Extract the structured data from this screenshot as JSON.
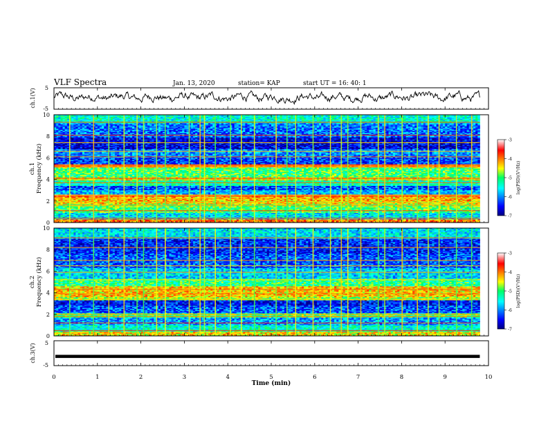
{
  "header": {
    "title": "VLF Spectra",
    "date": "Jan. 13, 2020",
    "station": "station= KAP",
    "start": "start UT = 16: 40: 1"
  },
  "chart_data": [
    {
      "type": "line",
      "name": "ch1-waveform",
      "ylabel": "ch.1(V)",
      "ylim": [
        -5,
        5
      ],
      "yticks": [
        "5",
        "-5"
      ],
      "xlim": [
        0,
        10
      ],
      "note_level_volts": 0.5,
      "series": [
        {
          "values_x_end_min": 9.8
        }
      ]
    },
    {
      "type": "heatmap",
      "name": "ch1-spectrogram",
      "ylabel": "ch.1\nFrequency (kHz)",
      "ylabel_line1": "ch.1",
      "ylabel_line2": "Frequency (kHz)",
      "ylim": [
        0,
        10
      ],
      "yticks": [
        "0",
        "2",
        "4",
        "6",
        "8",
        "10"
      ],
      "xlim": [
        0,
        9.8
      ],
      "colorbar": {
        "label": "log(PSD)(V²/Hz)",
        "range": [
          -7,
          -3
        ],
        "ticks": [
          "-3",
          "-4",
          "-5",
          "-6",
          "-7"
        ]
      },
      "bands_khz": [
        {
          "from": 0.0,
          "to": 0.3,
          "level": -4.0
        },
        {
          "from": 0.3,
          "to": 0.9,
          "level": -5.6
        },
        {
          "from": 0.9,
          "to": 1.4,
          "level": -5.0
        },
        {
          "from": 1.4,
          "to": 1.7,
          "level": -4.8
        },
        {
          "from": 1.7,
          "to": 2.0,
          "level": -4.4
        },
        {
          "from": 2.0,
          "to": 2.4,
          "level": -4.2
        },
        {
          "from": 2.4,
          "to": 2.6,
          "level": -3.6
        },
        {
          "from": 2.6,
          "to": 3.0,
          "level": -5.8
        },
        {
          "from": 3.0,
          "to": 3.4,
          "level": -6.2
        },
        {
          "from": 3.4,
          "to": 3.9,
          "level": -5.3
        },
        {
          "from": 3.9,
          "to": 4.2,
          "level": -4.5
        },
        {
          "from": 4.2,
          "to": 5.1,
          "level": -5.0
        },
        {
          "from": 5.1,
          "to": 5.4,
          "level": -3.8
        },
        {
          "from": 5.4,
          "to": 6.0,
          "level": -6.3
        },
        {
          "from": 6.0,
          "to": 6.8,
          "level": -6.0
        },
        {
          "from": 6.8,
          "to": 7.9,
          "level": -6.6
        },
        {
          "from": 7.9,
          "to": 9.2,
          "level": -6.1
        },
        {
          "from": 9.2,
          "to": 10.0,
          "level": -5.4
        }
      ],
      "lines_khz": [
        0.4,
        1.1,
        1.6,
        1.9,
        2.2,
        2.45,
        2.55,
        3.7,
        4.1,
        5.15,
        5.3,
        6.1,
        6.6,
        7.4,
        8.1,
        9.3
      ],
      "bursts_min": [
        0.35,
        0.9,
        1.25,
        1.6,
        1.9,
        2.05,
        2.35,
        2.55,
        3.1,
        3.35,
        3.45,
        3.7,
        4.05,
        4.3,
        4.6,
        5.1,
        5.35,
        5.55,
        5.95,
        6.35,
        6.6,
        6.75,
        7.05,
        7.45,
        7.6,
        8.0,
        8.35,
        8.6,
        8.85,
        9.25,
        9.6
      ]
    },
    {
      "type": "heatmap",
      "name": "ch2-spectrogram",
      "ylabel": "ch.2\nFrequency (kHz)",
      "ylabel_line1": "ch.2",
      "ylabel_line2": "Frequency (kHz)",
      "ylim": [
        0,
        10
      ],
      "yticks": [
        "0",
        "2",
        "4",
        "6",
        "8",
        "10"
      ],
      "xlim": [
        0,
        9.8
      ],
      "colorbar": {
        "label": "log(PSD)(V²/Hz)",
        "range": [
          -7,
          -3
        ],
        "ticks": [
          "-3",
          "-4",
          "-5",
          "-6",
          "-7"
        ]
      },
      "bands_khz": [
        {
          "from": 0.0,
          "to": 0.4,
          "level": -4.4
        },
        {
          "from": 0.4,
          "to": 1.0,
          "level": -5.4
        },
        {
          "from": 1.0,
          "to": 1.7,
          "level": -5.9
        },
        {
          "from": 1.7,
          "to": 2.1,
          "level": -5.0
        },
        {
          "from": 2.1,
          "to": 2.8,
          "level": -6.2
        },
        {
          "from": 2.8,
          "to": 3.3,
          "level": -6.5
        },
        {
          "from": 3.3,
          "to": 3.6,
          "level": -4.7
        },
        {
          "from": 3.6,
          "to": 4.6,
          "level": -4.3
        },
        {
          "from": 4.6,
          "to": 5.3,
          "level": -5.1
        },
        {
          "from": 5.3,
          "to": 6.3,
          "level": -5.7
        },
        {
          "from": 6.3,
          "to": 7.6,
          "level": -6.2
        },
        {
          "from": 7.6,
          "to": 9.0,
          "level": -6.4
        },
        {
          "from": 9.0,
          "to": 10.0,
          "level": -5.6
        }
      ],
      "lines_khz": [
        0.5,
        1.2,
        1.8,
        2.0,
        3.4,
        3.9,
        4.3,
        5.2,
        5.9,
        6.5,
        7.0,
        8.2,
        9.1
      ],
      "bursts_min": [
        0.35,
        0.9,
        1.25,
        1.6,
        1.9,
        2.05,
        2.35,
        2.55,
        3.1,
        3.35,
        3.45,
        3.7,
        4.05,
        4.3,
        4.6,
        5.1,
        5.35,
        5.55,
        5.95,
        6.35,
        6.6,
        6.75,
        7.05,
        7.45,
        7.6,
        8.0,
        8.35,
        8.6,
        8.85,
        9.25,
        9.6
      ]
    },
    {
      "type": "line",
      "name": "ch3-waveform",
      "ylabel": "ch.3(V)",
      "ylim": [
        -5,
        5
      ],
      "yticks": [
        "5",
        "-5"
      ],
      "xlim": [
        0,
        10
      ],
      "series": [
        {
          "constant_value_volts": -1.3,
          "x_end_min": 9.8
        }
      ]
    }
  ],
  "xaxis": {
    "label": "Time (min)",
    "ticks": [
      "0",
      "1",
      "2",
      "3",
      "4",
      "5",
      "6",
      "7",
      "8",
      "9",
      "10"
    ],
    "range": [
      0,
      10
    ]
  }
}
